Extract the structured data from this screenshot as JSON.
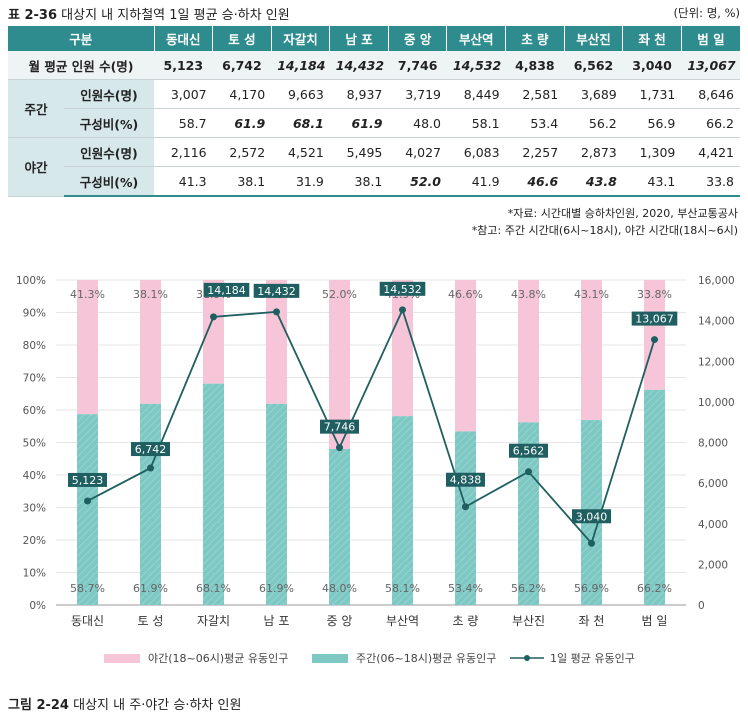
{
  "table": {
    "label": "표 2-36",
    "title": "대상지 내 지하철역 1일 평균 승·하차 인원",
    "unit": "(단위: 명, %)",
    "header": [
      "구분",
      "동대신",
      "토 성",
      "자갈치",
      "남 포",
      "중 앙",
      "부산역",
      "초 량",
      "부산진",
      "좌 천",
      "범 일"
    ],
    "total_label": "월 평균 인원 수(명)",
    "total": [
      "5,123",
      "6,742",
      "14,184",
      "14,432",
      "7,746",
      "14,532",
      "4,838",
      "6,562",
      "3,040",
      "13,067"
    ],
    "day_label": "주간",
    "night_label": "야간",
    "count_label": "인원수(명)",
    "ratio_label": "구성비(%)",
    "day_count": [
      "3,007",
      "4,170",
      "9,663",
      "8,937",
      "3,719",
      "8,449",
      "2,581",
      "3,689",
      "1,731",
      "8,646"
    ],
    "day_ratio": [
      "58.7",
      "61.9",
      "68.1",
      "61.9",
      "48.0",
      "58.1",
      "53.4",
      "56.2",
      "56.9",
      "66.2"
    ],
    "night_count": [
      "2,116",
      "2,572",
      "4,521",
      "5,495",
      "4,027",
      "6,083",
      "2,257",
      "2,873",
      "1,309",
      "4,421"
    ],
    "night_ratio": [
      "41.3",
      "38.1",
      "31.9",
      "38.1",
      "52.0",
      "41.9",
      "46.6",
      "43.8",
      "43.1",
      "33.8"
    ]
  },
  "notes": [
    "*자료: 시간대별 승하차인원, 2020, 부산교통공사",
    "*참고: 주간 시간대(6시~18시), 야간 시간대(18시~6시)"
  ],
  "caption": {
    "label": "그림 2-24",
    "title": "대상지 내 주·야간 승·하차 인원"
  },
  "colors": {
    "night": "#f7c5d8",
    "day": "#7ec8c4",
    "line": "#1f5f61",
    "header": "#2e8b8e"
  },
  "chart_data": {
    "type": "bar",
    "categories": [
      "동대신",
      "토 성",
      "자갈치",
      "남 포",
      "중 앙",
      "부산역",
      "초 량",
      "부산진",
      "좌 천",
      "범 일"
    ],
    "series": [
      {
        "name": "주간(06~18시)평균 유동인구",
        "values": [
          58.7,
          61.9,
          68.1,
          61.9,
          48.0,
          58.1,
          53.4,
          56.2,
          56.9,
          66.2
        ]
      },
      {
        "name": "야간(18~06시)평균 유동인구",
        "values": [
          41.3,
          38.1,
          31.9,
          38.1,
          52.0,
          41.9,
          46.6,
          43.8,
          43.1,
          33.8
        ]
      },
      {
        "name": "1일 평균 유동인구",
        "type": "line",
        "axis": "right",
        "values": [
          5123,
          6742,
          14184,
          14432,
          7746,
          14532,
          4838,
          6562,
          3040,
          13067
        ]
      }
    ],
    "left_ylim": [
      0,
      100
    ],
    "left_ticks": [
      0,
      10,
      20,
      30,
      40,
      50,
      60,
      70,
      80,
      90,
      100
    ],
    "right_ylim": [
      0,
      16000
    ],
    "right_ticks": [
      0,
      2000,
      4000,
      6000,
      8000,
      10000,
      12000,
      14000,
      16000
    ],
    "bar_labels_day": [
      "58.7%",
      "61.9%",
      "68.1%",
      "61.9%",
      "48.0%",
      "58.1%",
      "53.4%",
      "56.2%",
      "56.9%",
      "66.2%"
    ],
    "bar_labels_night": [
      "41.3%",
      "38.1%",
      "31.9%",
      "38.1%",
      "52.0%",
      "41.9%",
      "46.6%",
      "43.8%",
      "43.1%",
      "33.8%"
    ],
    "line_labels": [
      "5,123",
      "6,742",
      "14,184",
      "14,432",
      "7,746",
      "14,532",
      "4,838",
      "6,562",
      "3,040",
      "13,067"
    ],
    "legend": [
      "야간(18~06시)평균 유동인구",
      "주간(06~18시)평균 유동인구",
      "1일 평균 유동인구"
    ],
    "grid": true
  }
}
